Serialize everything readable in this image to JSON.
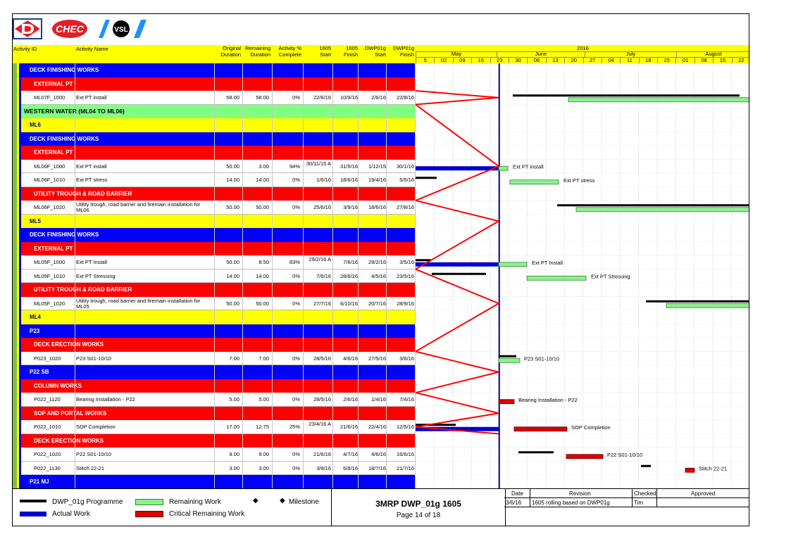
{
  "columns": {
    "activity_id": "Activity ID",
    "activity_name": "Activity Name",
    "orig_dur_1": "Original",
    "orig_dur_2": "Duration",
    "rem_dur_1": "Remaining",
    "rem_dur_2": "Duration",
    "pct_1": "Activity %",
    "pct_2": "Complete",
    "start_1": "1605",
    "start_2": "Start",
    "finish_1": "1605",
    "finish_2": "Finish",
    "dwp_start_1": "DWP01g",
    "dwp_start_2": "Start",
    "dwp_finish_1": "DWP01g",
    "dwp_finish_2": "Finish"
  },
  "timescale": {
    "year": "2016",
    "months": [
      "May",
      "June",
      "July",
      "August"
    ],
    "weeks": [
      "5",
      "02",
      "09",
      "16",
      "23",
      "30",
      "06",
      "13",
      "20",
      "27",
      "04",
      "11",
      "18",
      "25",
      "01",
      "08",
      "15",
      "22"
    ]
  },
  "colors": {
    "band_blue": "#0000ff",
    "band_red": "#ff0000",
    "band_yellow": "#ffff00",
    "band_green": "#80ff80",
    "bar_black": "#000000",
    "bar_green": "#90ee90",
    "bar_blue": "#0000cc",
    "bar_red": "#dd0000",
    "data_date": "#00008b"
  },
  "rows": [
    {
      "type": "band",
      "color": "blue",
      "label": "DECK FINISHING WORKS"
    },
    {
      "type": "band",
      "color": "red",
      "label": "EXTERNAL PT"
    },
    {
      "type": "task",
      "id": "ML07F_1000",
      "name": "Ext PT install",
      "od": "58.00",
      "rd": "58.00",
      "pc": "0%",
      "st": "22/6/16",
      "fi": "10/9/16",
      "ds": "2/6/16",
      "df": "22/8/16"
    },
    {
      "type": "band",
      "color": "green",
      "label": "WESTERN WATER (ML04 TO ML06)"
    },
    {
      "type": "band",
      "color": "yellow",
      "label": "ML6"
    },
    {
      "type": "band",
      "color": "blue",
      "label": "DECK FINISHING WORKS"
    },
    {
      "type": "band",
      "color": "red",
      "label": "EXTERNAL PT"
    },
    {
      "type": "task",
      "id": "ML06F_1000",
      "name": "Ext PT install",
      "od": "50.00",
      "rd": "3.00",
      "pc": "94%",
      "st": "30/11/15 A",
      "fi": "31/5/16",
      "ds": "1/12/15",
      "df": "30/1/16"
    },
    {
      "type": "task",
      "id": "ML06F_1010",
      "name": "Ext PT stress",
      "od": "14.00",
      "rd": "14.00",
      "pc": "0%",
      "st": "1/6/16",
      "fi": "18/6/16",
      "ds": "19/4/16",
      "df": "5/5/16"
    },
    {
      "type": "band",
      "color": "red",
      "label": "UTILITY TROUGH & ROAD BARRIER"
    },
    {
      "type": "task",
      "id": "ML06F_1020",
      "name": "Utility trough, road barrier and firemain installation for ML06",
      "od": "50.00",
      "rd": "50.00",
      "pc": "0%",
      "st": "25/6/16",
      "fi": "3/9/16",
      "ds": "18/6/16",
      "df": "27/8/16"
    },
    {
      "type": "band",
      "color": "yellow",
      "label": "ML5"
    },
    {
      "type": "band",
      "color": "blue",
      "label": "DECK FINISHING WORKS"
    },
    {
      "type": "band",
      "color": "red",
      "label": "EXTERNAL PT"
    },
    {
      "type": "task",
      "id": "ML05F_1000",
      "name": "Ext PT Install",
      "od": "50.00",
      "rd": "8.50",
      "pc": "83%",
      "st": "29/2/16 A",
      "fi": "7/6/16",
      "ds": "29/2/16",
      "df": "3/5/16"
    },
    {
      "type": "task",
      "id": "ML05F_1010",
      "name": "Ext PT Stressing",
      "od": "14.00",
      "rd": "14.00",
      "pc": "0%",
      "st": "7/6/16",
      "fi": "28/6/16",
      "ds": "4/5/16",
      "df": "23/5/16"
    },
    {
      "type": "band",
      "color": "red",
      "label": "UTILITY TROUGH & ROAD BARRIER"
    },
    {
      "type": "task",
      "id": "ML05F_1020",
      "name": "Utility trough, road barrier and firemain installation for ML05",
      "od": "50.00",
      "rd": "50.00",
      "pc": "0%",
      "st": "27/7/16",
      "fi": "6/10/16",
      "ds": "20/7/16",
      "df": "28/9/16"
    },
    {
      "type": "band",
      "color": "yellow",
      "label": "ML4"
    },
    {
      "type": "band",
      "color": "blue",
      "label": "P23"
    },
    {
      "type": "band",
      "color": "red",
      "label": "DECK ERECTION WORKS"
    },
    {
      "type": "task",
      "id": "P023_1020",
      "name": "P23 S01-10/10",
      "od": "7.00",
      "rd": "7.00",
      "pc": "0%",
      "st": "28/5/16",
      "fi": "4/6/16",
      "ds": "27/5/16",
      "df": "3/6/16"
    },
    {
      "type": "band",
      "color": "blue",
      "label": "P22 SB"
    },
    {
      "type": "band",
      "color": "red",
      "label": "COLUMN WORKS"
    },
    {
      "type": "task",
      "id": "P022_1120",
      "name": "Bearing Installation - P22",
      "od": "5.00",
      "rd": "5.00",
      "pc": "0%",
      "st": "28/5/16",
      "fi": "2/6/16",
      "ds": "1/4/16",
      "df": "7/4/16"
    },
    {
      "type": "band",
      "color": "red",
      "label": "SOP AND PORTAL WORKS"
    },
    {
      "type": "task",
      "id": "P022_1010",
      "name": "SOP Completion",
      "od": "17.00",
      "rd": "12.75",
      "pc": "25%",
      "st": "23/4/16 A",
      "fi": "21/6/16",
      "ds": "22/4/16",
      "df": "12/5/16"
    },
    {
      "type": "band",
      "color": "red",
      "label": "DECK ERECTION WORKS"
    },
    {
      "type": "task",
      "id": "P022_1020",
      "name": "P22 S01-10/10",
      "od": "9.00",
      "rd": "9.00",
      "pc": "0%",
      "st": "21/6/16",
      "fi": "4/7/16",
      "ds": "4/6/16",
      "df": "16/6/16"
    },
    {
      "type": "task",
      "id": "P022_1130",
      "name": "Stitch 22-21",
      "od": "3.00",
      "rd": "3.00",
      "pc": "0%",
      "st": "3/8/16",
      "fi": "6/8/16",
      "ds": "18/7/16",
      "df": "21/7/16"
    },
    {
      "type": "band",
      "color": "blue",
      "label": "P21 MJ"
    }
  ],
  "gantt_labels": [
    {
      "row": 7,
      "text": "Ext PT install"
    },
    {
      "row": 8,
      "text": "Ext PT stress"
    },
    {
      "row": 14,
      "text": "Ext PT Install"
    },
    {
      "row": 15,
      "text": "Ext PT Stressing"
    },
    {
      "row": 21,
      "text": "P23 S01-10/10"
    },
    {
      "row": 24,
      "text": "Bearing Installation - P22"
    },
    {
      "row": 26,
      "text": "SOP Completion"
    },
    {
      "row": 28,
      "text": "P22 S01-10/10"
    },
    {
      "row": 29,
      "text": "Stitch 22-21"
    }
  ],
  "legend": {
    "programme": "DWP_01g Programme",
    "actual": "Actual Work",
    "remaining": "Remaining Work",
    "critical": "Critical Remaining Work",
    "milestone": "Milestone"
  },
  "title_block": {
    "title": "3MRP DWP_01g 1605",
    "page": "Page 14 of 18"
  },
  "revision": {
    "h_date": "Date",
    "h_revision": "Revision",
    "h_checked": "Checked",
    "h_approved": "Approved",
    "date": "3/6/16",
    "text": "1605 rolling based on DWP01g",
    "checked": "Tim",
    "approved": ""
  }
}
